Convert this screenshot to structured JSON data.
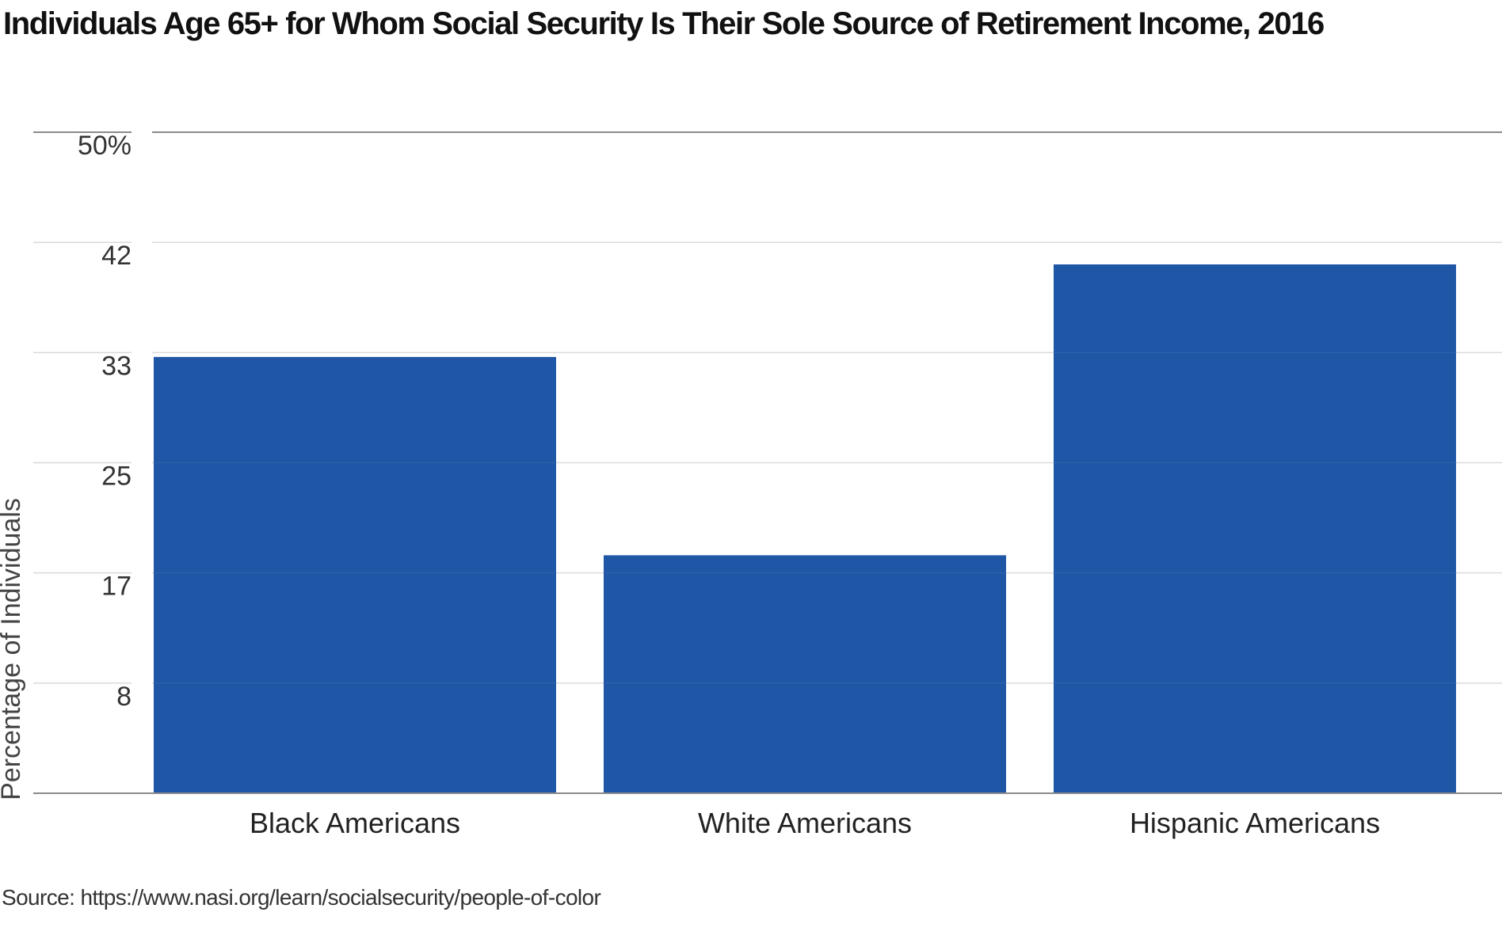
{
  "chart_data": {
    "type": "bar",
    "title": "Individuals Age 65+ for Whom Social Security Is Their Sole Source of Retirement Income, 2016",
    "xlabel": "",
    "ylabel": "Percentage of Individuals",
    "categories": [
      "Black Americans",
      "White Americans",
      "Hispanic Americans"
    ],
    "values": [
      33,
      18,
      40
    ],
    "ylim": [
      0,
      50
    ],
    "y_tick_values": [
      8.33,
      16.67,
      25,
      33.33,
      41.67,
      50
    ],
    "y_tick_labels": [
      "8",
      "17",
      "25",
      "33",
      "42",
      "50%"
    ],
    "grid": true,
    "legend": "none",
    "bar_color": "#1f56a5"
  },
  "source": "Source: https://www.nasi.org/learn/socialsecurity/people-of-color"
}
